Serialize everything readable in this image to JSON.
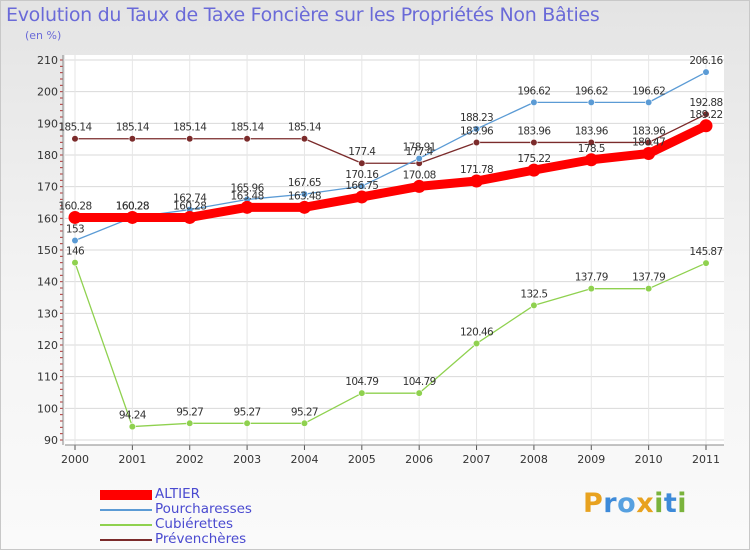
{
  "chart_data": {
    "type": "line",
    "title": "Evolution du Taux de Taxe Foncière sur les Propriétés Non Bâties",
    "subtitle": "(en %)",
    "xlabel": "",
    "ylabel": "",
    "ylim": [
      90,
      210
    ],
    "yticks": [
      90,
      100,
      110,
      120,
      130,
      140,
      150,
      160,
      170,
      180,
      190,
      200,
      210
    ],
    "categories": [
      "2000",
      "2001",
      "2002",
      "2003",
      "2004",
      "2005",
      "2006",
      "2007",
      "2008",
      "2009",
      "2010",
      "2011"
    ],
    "series": [
      {
        "name": "ALTIER",
        "color": "#ff0000",
        "values": [
          160.28,
          160.28,
          160.28,
          163.48,
          163.48,
          166.75,
          170.08,
          171.78,
          175.22,
          178.5,
          180.47,
          189.22
        ],
        "labels": [
          "160.28",
          "160.28",
          "160.28",
          "163.48",
          "163.48",
          "166.75",
          "170.08",
          "171.78",
          "175.22",
          "178.5",
          "180.47",
          "189.22"
        ]
      },
      {
        "name": "Pourcharesses",
        "color": "#5b9bd5",
        "values": [
          153,
          160.28,
          162.74,
          165.96,
          167.65,
          170.16,
          178.91,
          188.23,
          196.62,
          196.62,
          196.62,
          206.16
        ],
        "labels": [
          "153",
          "160.28",
          "162.74",
          "165.96",
          "167.65",
          "170.16",
          "178.91",
          "188.23",
          "196.62",
          "196.62",
          "196.62",
          "206.16"
        ]
      },
      {
        "name": "Cubiérettes",
        "color": "#8fd14f",
        "values": [
          146,
          94.24,
          95.27,
          95.27,
          95.27,
          104.79,
          104.79,
          120.46,
          132.5,
          137.79,
          137.79,
          145.87
        ],
        "labels": [
          "146",
          "94.24",
          "95.27",
          "95.27",
          "95.27",
          "104.79",
          "104.79",
          "120.46",
          "132.5",
          "137.79",
          "137.79",
          "145.87"
        ]
      },
      {
        "name": "Prévenchères",
        "color": "#7b2b2b",
        "values": [
          185.14,
          185.14,
          185.14,
          185.14,
          185.14,
          177.4,
          177.4,
          183.96,
          183.96,
          183.96,
          183.96,
          192.88
        ],
        "labels": [
          "185.14",
          "185.14",
          "185.14",
          "185.14",
          "185.14",
          "177.4",
          "177.4",
          "183.96",
          "183.96",
          "183.96",
          "183.96",
          "192.88"
        ]
      }
    ],
    "legend": [
      "ALTIER",
      "Pourcharesses",
      "Cubiérettes",
      "Prévenchères"
    ],
    "legend_position": "bottom-left",
    "grid": true
  },
  "brand": {
    "logo_letters": [
      "P",
      "r",
      "o",
      "x",
      "i",
      "t",
      "i"
    ]
  }
}
